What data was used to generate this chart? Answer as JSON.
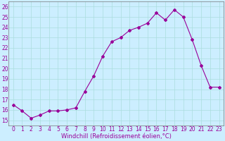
{
  "x": [
    0,
    1,
    2,
    3,
    4,
    5,
    6,
    7,
    8,
    9,
    10,
    11,
    12,
    13,
    14,
    15,
    16,
    17,
    18,
    19,
    20,
    21,
    22,
    23
  ],
  "y": [
    16.5,
    15.9,
    15.2,
    15.5,
    15.9,
    15.9,
    16.0,
    16.2,
    17.8,
    19.3,
    21.2,
    22.6,
    23.0,
    23.7,
    24.0,
    24.4,
    25.4,
    24.7,
    25.7,
    25.0,
    22.8,
    20.3,
    18.2,
    18.2
  ],
  "line_color": "#990099",
  "marker": "D",
  "marker_size": 2.0,
  "bg_color": "#cceeff",
  "grid_color": "#aadddd",
  "xlabel": "Windchill (Refroidissement éolien,°C)",
  "xlim": [
    -0.5,
    23.5
  ],
  "ylim": [
    14.5,
    26.5
  ],
  "yticks": [
    15,
    16,
    17,
    18,
    19,
    20,
    21,
    22,
    23,
    24,
    25,
    26
  ],
  "xticks": [
    0,
    1,
    2,
    3,
    4,
    5,
    6,
    7,
    8,
    9,
    10,
    11,
    12,
    13,
    14,
    15,
    16,
    17,
    18,
    19,
    20,
    21,
    22,
    23
  ],
  "label_color": "#990099",
  "tick_color": "#990099",
  "xlabel_fontsize": 6.0,
  "tick_fontsize": 5.5,
  "linewidth": 0.8
}
